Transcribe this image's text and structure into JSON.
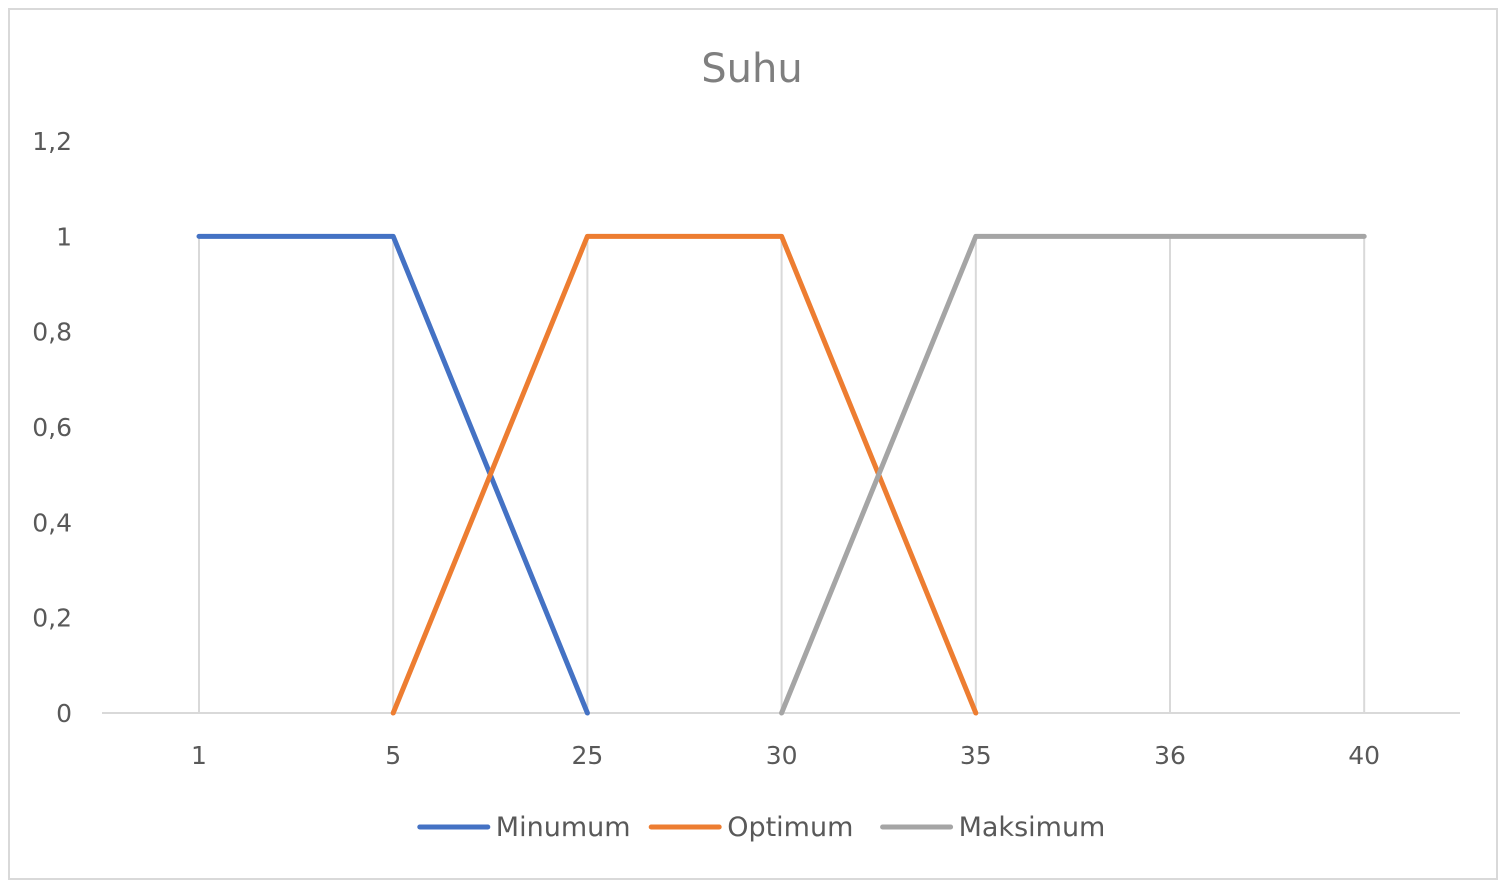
{
  "chart_data": {
    "type": "line",
    "title": "Suhu",
    "xlabel": "",
    "ylabel": "",
    "categories": [
      "1",
      "5",
      "25",
      "30",
      "35",
      "36",
      "40"
    ],
    "y_ticks": [
      "0",
      "0,2",
      "0,4",
      "0,6",
      "0,8",
      "1",
      "1,2"
    ],
    "ylim": [
      0,
      1.2
    ],
    "grid": "vertical",
    "legend_position": "bottom",
    "series": [
      {
        "name": "Minumum",
        "color": "#4472c4",
        "values": [
          1,
          1,
          0,
          null,
          null,
          null,
          null
        ]
      },
      {
        "name": "Optimum",
        "color": "#ed7d31",
        "values": [
          null,
          0,
          1,
          1,
          0,
          null,
          null
        ]
      },
      {
        "name": "Maksimum",
        "color": "#a5a5a5",
        "values": [
          null,
          null,
          null,
          0,
          1,
          1,
          1
        ]
      }
    ]
  }
}
